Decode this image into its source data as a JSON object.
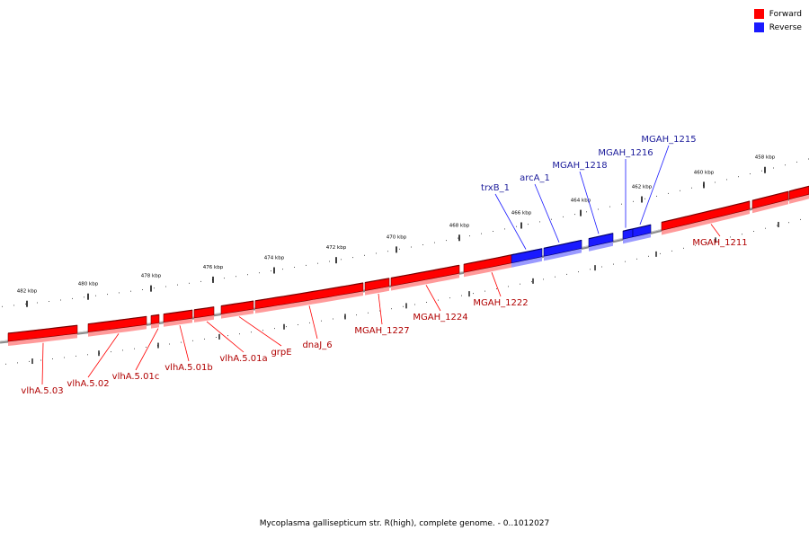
{
  "legend": {
    "forward_label": "Forward",
    "reverse_label": "Reverse",
    "forward_color": "#ff0000",
    "reverse_color": "#1a1aff"
  },
  "caption": "Mycoplasma gallisepticum str. R(high), complete genome. - 0..1012027",
  "ticks": [
    "482 kbp",
    "480 kbp",
    "478 kbp",
    "476 kbp",
    "474 kbp",
    "472 kbp",
    "470 kbp",
    "468 kbp",
    "466 kbp",
    "464 kbp",
    "462 kbp",
    "460 kbp",
    "458 kbp"
  ],
  "genes": [
    {
      "label": "vlhA.5.03",
      "strand": "forward"
    },
    {
      "label": "vlhA.5.02",
      "strand": "forward"
    },
    {
      "label": "vlhA.5.01c",
      "strand": "forward"
    },
    {
      "label": "vlhA.5.01b",
      "strand": "forward"
    },
    {
      "label": "vlhA.5.01a",
      "strand": "forward"
    },
    {
      "label": "grpE",
      "strand": "forward"
    },
    {
      "label": "dnaJ_6",
      "strand": "forward"
    },
    {
      "label": "MGAH_1227",
      "strand": "forward"
    },
    {
      "label": "MGAH_1224",
      "strand": "forward"
    },
    {
      "label": "MGAH_1222",
      "strand": "forward"
    },
    {
      "label": "trxB_1",
      "strand": "reverse"
    },
    {
      "label": "arcA_1",
      "strand": "reverse"
    },
    {
      "label": "MGAH_1218",
      "strand": "reverse"
    },
    {
      "label": "MGAH_1216",
      "strand": "reverse"
    },
    {
      "label": "MGAH_1215",
      "strand": "reverse"
    },
    {
      "label": "MGAH_1211",
      "strand": "forward"
    }
  ]
}
